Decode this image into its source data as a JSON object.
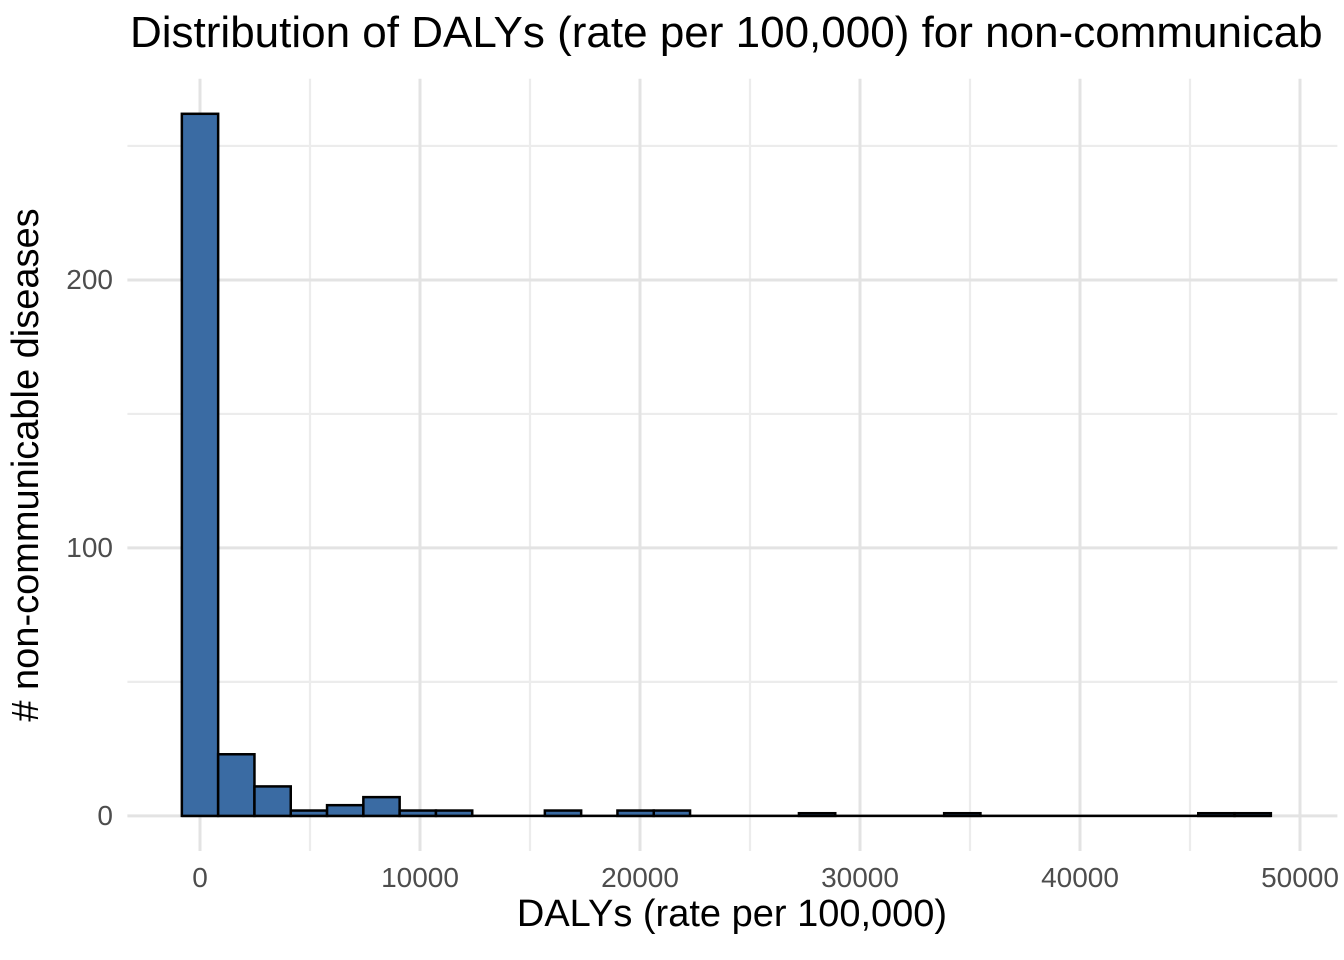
{
  "title": "Distribution of DALYs (rate per 100,000) for non-communicab",
  "x_axis": {
    "label": "DALYs (rate per 100,000)",
    "tick_labels": [
      "0",
      "10000",
      "20000",
      "30000",
      "40000",
      "50000"
    ],
    "tick_values": [
      0,
      10000,
      20000,
      30000,
      40000,
      50000
    ],
    "minor_tick_values": [
      5000,
      15000,
      25000,
      35000,
      45000
    ]
  },
  "y_axis": {
    "label": "# non-communicable diseases",
    "tick_labels": [
      "0",
      "100",
      "200"
    ],
    "tick_values": [
      0,
      100,
      200
    ],
    "minor_tick_values": [
      50,
      150,
      250
    ]
  },
  "chart_data": {
    "type": "bar",
    "subtype": "histogram",
    "title": "Distribution of DALYs (rate per 100,000) for non-communicab",
    "xlabel": "DALYs (rate per 100,000)",
    "ylabel": "# non-communicable diseases",
    "bins": 30,
    "bin_width": 1650,
    "bin_centers": [
      0,
      1650,
      3300,
      4950,
      6600,
      8250,
      9900,
      11550,
      13200,
      14850,
      16500,
      18150,
      19800,
      21450,
      23100,
      24750,
      26400,
      28050,
      29700,
      31350,
      33000,
      34650,
      36300,
      37950,
      39600,
      41250,
      42900,
      44550,
      46200,
      47850
    ],
    "counts": [
      262,
      23,
      11,
      2,
      4,
      7,
      2,
      2,
      0,
      0,
      2,
      0,
      2,
      2,
      0,
      0,
      0,
      1,
      0,
      0,
      0,
      1,
      0,
      0,
      0,
      0,
      0,
      0,
      1,
      1
    ],
    "xlim": [
      -3300,
      51700
    ],
    "ylim": [
      -13.1,
      275.1
    ],
    "grid": true,
    "legend": false
  },
  "colors": {
    "bar_fill": "#3A6BA3",
    "bar_stroke": "#000000",
    "grid_major": "#E3E3E3",
    "grid_minor": "#ECECEC",
    "tick_text": "#4D4D4D",
    "title_text": "#000000",
    "background": "#FFFFFF"
  }
}
